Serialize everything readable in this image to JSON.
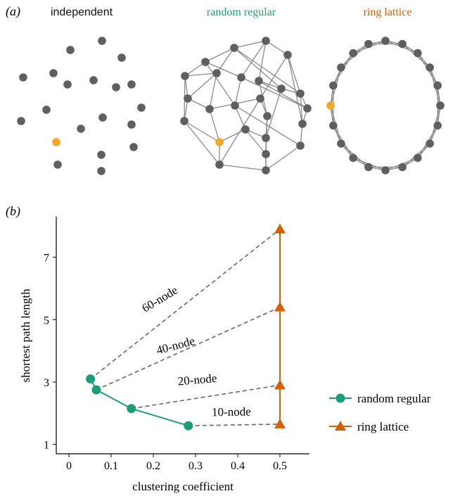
{
  "panel_a": {
    "label": "(a)",
    "titles": {
      "independent": "independent",
      "random_regular": "random regular",
      "ring_lattice": "ring lattice"
    }
  },
  "panel_b": {
    "label": "(b)"
  },
  "colors": {
    "random_regular": "#1a9e77",
    "ring_lattice": "#d95f02",
    "node": "#5f5f5f",
    "highlight_node": "#f5a623",
    "edge": "#8a8a8a",
    "connector": "#666666"
  },
  "chart_data": {
    "type": "line",
    "xlabel": "clustering coefficient",
    "ylabel": "shortest path length",
    "xlim": [
      -0.03,
      0.57
    ],
    "ylim": [
      0.7,
      8.3
    ],
    "xticks": [
      0,
      0.1,
      0.2,
      0.3,
      0.4,
      0.5
    ],
    "xtick_labels": [
      "0",
      "0.1",
      "0.2",
      "0.3",
      "0.4",
      "0.5"
    ],
    "yticks": [
      1,
      3,
      5,
      7
    ],
    "ytick_labels": [
      "1",
      "3",
      "5",
      "7"
    ],
    "grid": false,
    "legend_position": "right",
    "series": [
      {
        "name": "random regular",
        "key": "random_regular",
        "marker": "circle",
        "points": [
          {
            "size": "60-node",
            "x": 0.051,
            "y": 3.1
          },
          {
            "size": "40-node",
            "x": 0.065,
            "y": 2.75
          },
          {
            "size": "20-node",
            "x": 0.148,
            "y": 2.15
          },
          {
            "size": "10-node",
            "x": 0.283,
            "y": 1.6
          }
        ]
      },
      {
        "name": "ring lattice",
        "key": "ring_lattice",
        "marker": "triangle",
        "points": [
          {
            "size": "60-node",
            "x": 0.5,
            "y": 7.9
          },
          {
            "size": "40-node",
            "x": 0.5,
            "y": 5.4
          },
          {
            "size": "20-node",
            "x": 0.5,
            "y": 2.9
          },
          {
            "size": "10-node",
            "x": 0.5,
            "y": 1.65
          }
        ]
      }
    ],
    "annotations": [
      {
        "text": "60-node",
        "x": 0.22,
        "y": 5.55,
        "angle": -31
      },
      {
        "text": "40-node",
        "x": 0.255,
        "y": 4.05,
        "angle": -15
      },
      {
        "text": "20-node",
        "x": 0.305,
        "y": 2.95,
        "angle": -5
      },
      {
        "text": "10-node",
        "x": 0.385,
        "y": 1.92,
        "angle": -1
      }
    ]
  }
}
